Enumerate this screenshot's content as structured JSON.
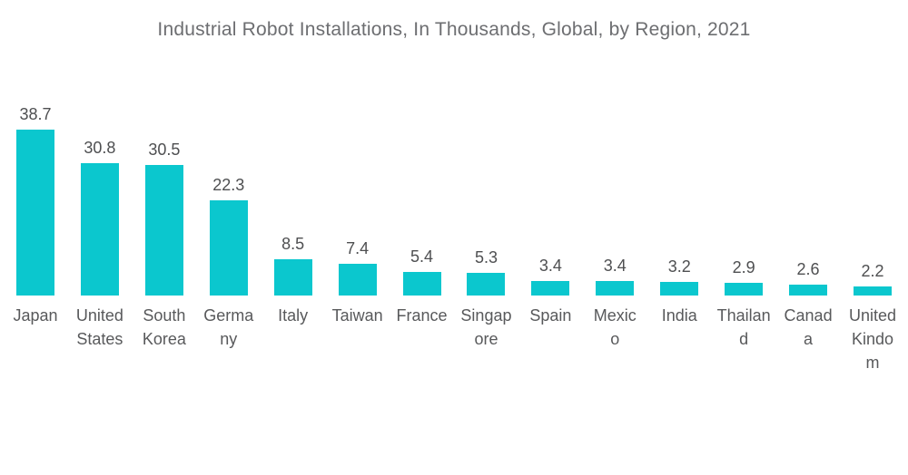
{
  "colors": {
    "bar": "#0bc7ce",
    "title_text": "#6d6e71",
    "value_text": "#4e4f51",
    "category_text": "#58595b",
    "background": "#ffffff"
  },
  "chart_data": {
    "type": "bar",
    "title": "Industrial Robot Installations, In Thousands, Global, by Region, 2021",
    "xlabel": "",
    "ylabel": "",
    "categories": [
      "Japan",
      "United States",
      "South Korea",
      "Germany",
      "Italy",
      "Taiwan",
      "France",
      "Singapore",
      "Spain",
      "Mexico",
      "India",
      "Thailand",
      "Canada",
      "United Kindom"
    ],
    "values": [
      38.7,
      30.8,
      30.5,
      22.3,
      8.5,
      7.4,
      5.4,
      5.3,
      3.4,
      3.4,
      3.2,
      2.9,
      2.6,
      2.2
    ],
    "label_lines": [
      [
        "Japan"
      ],
      [
        "United",
        "States"
      ],
      [
        "South",
        "Korea"
      ],
      [
        "Germa",
        "ny"
      ],
      [
        "Italy"
      ],
      [
        "Taiwan"
      ],
      [
        "France"
      ],
      [
        "Singap",
        "ore"
      ],
      [
        "Spain"
      ],
      [
        "Mexic",
        "o"
      ],
      [
        "India"
      ],
      [
        "Thailan",
        "d"
      ],
      [
        "Canad",
        "a"
      ],
      [
        "United",
        "Kindo",
        "m"
      ]
    ],
    "ylim": [
      0,
      40
    ],
    "grid": false,
    "legend": false,
    "axis_lines": false,
    "data_labels": "above bars"
  }
}
